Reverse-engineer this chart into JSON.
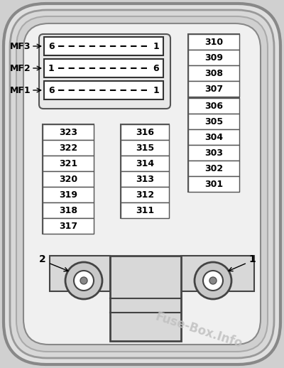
{
  "bg_color": "#e8e8e8",
  "fig_bg": "#d8d8d8",
  "mf_labels": [
    "MF3",
    "MF2",
    "MF1"
  ],
  "mf_rows": [
    {
      "left": "6",
      "right": "1"
    },
    {
      "left": "1",
      "right": "6"
    },
    {
      "left": "6",
      "right": "1"
    }
  ],
  "left_col": [
    "323",
    "322",
    "321",
    "320",
    "319",
    "318",
    "317"
  ],
  "mid_col": [
    "316",
    "315",
    "314",
    "313",
    "312",
    "311"
  ],
  "right_col": [
    "310",
    "309",
    "308",
    "307",
    "306",
    "305",
    "304",
    "303",
    "302",
    "301"
  ],
  "watermark": "Fuse-Box.Info",
  "watermark_color": "#c0c0c0",
  "outer_radii": [
    55,
    45,
    35,
    25
  ],
  "outer_colors": [
    "#cccccc",
    "#aaaaaa",
    "#888888",
    "#666666"
  ],
  "bolt_left_label": "2",
  "bolt_right_label": "1"
}
